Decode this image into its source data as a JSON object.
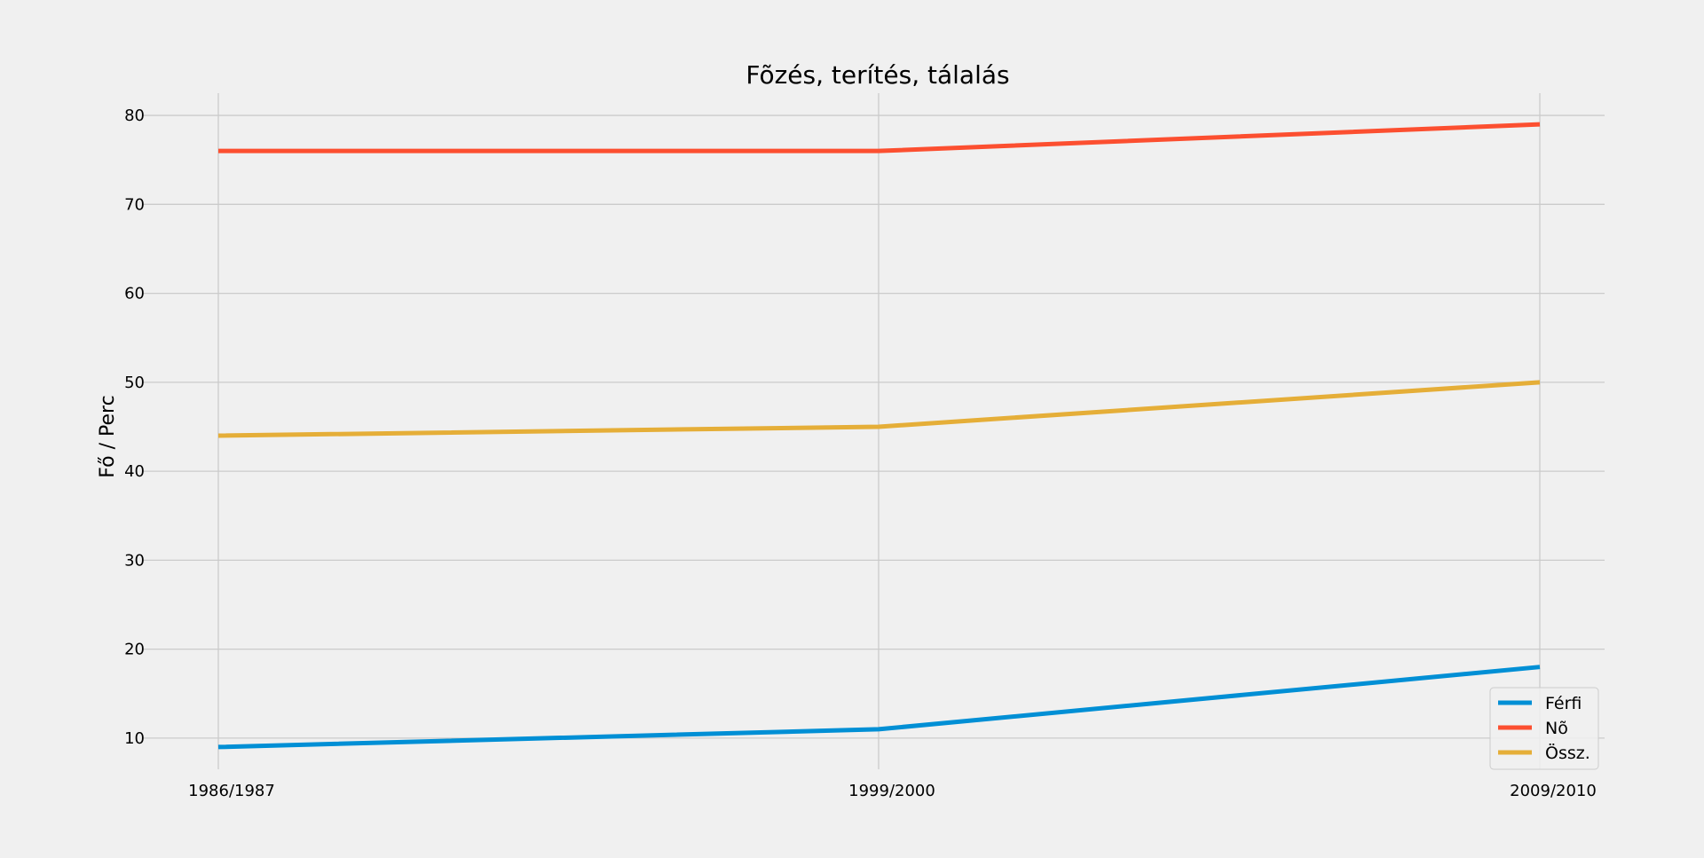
{
  "chart_data": {
    "type": "line",
    "title": "Fõzés, terítés, tálalás",
    "xlabel": "",
    "ylabel": "Fő / Perc",
    "categories": [
      "1986/1987",
      "1999/2000",
      "2009/2010"
    ],
    "series": [
      {
        "name": "Férfi",
        "values": [
          9,
          11,
          18
        ],
        "color": "#008fd5"
      },
      {
        "name": "Nõ",
        "values": [
          76,
          76,
          79
        ],
        "color": "#fc4f30"
      },
      {
        "name": "Össz.",
        "values": [
          44,
          45,
          50
        ],
        "color": "#e5ae38"
      }
    ],
    "ylim": [
      6.5,
      82.5
    ],
    "yticks": [
      10,
      20,
      30,
      40,
      50,
      60,
      70,
      80
    ],
    "grid": true,
    "legend_position": "bottom-right"
  }
}
